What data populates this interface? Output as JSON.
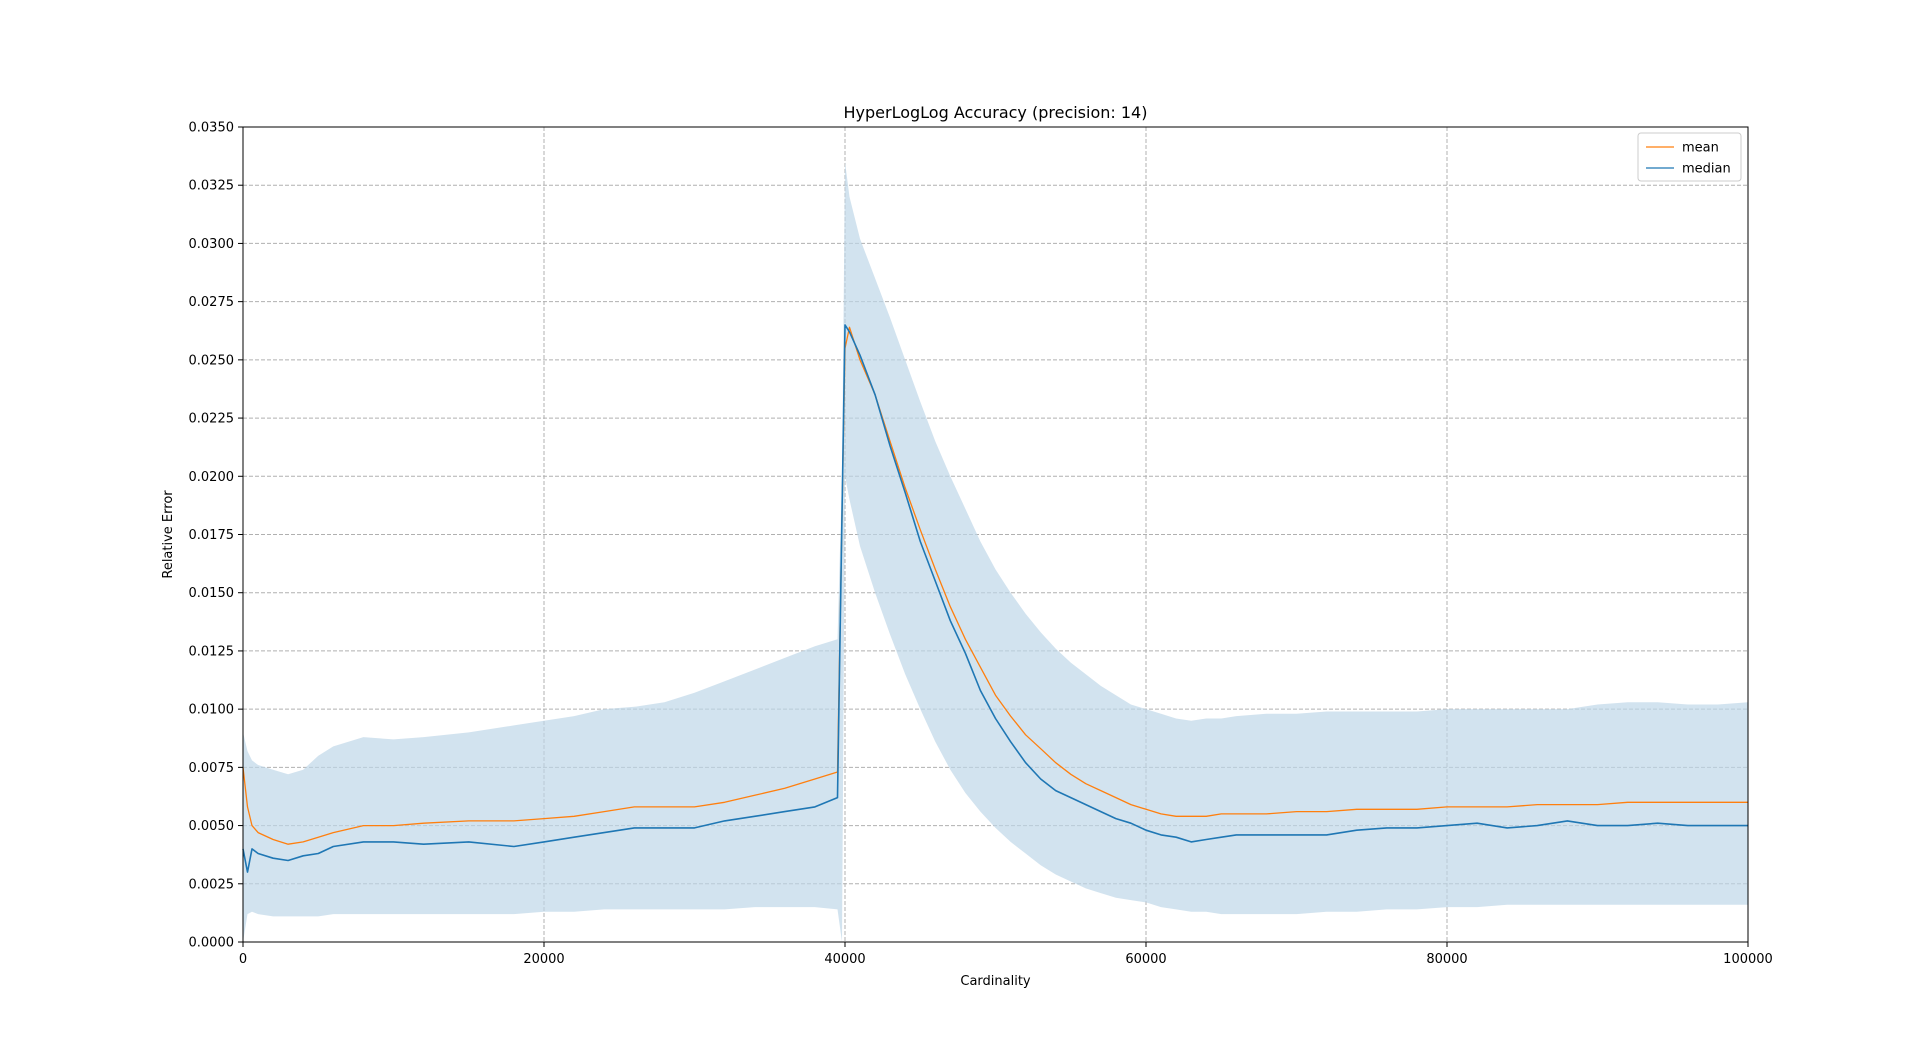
{
  "chart_data": {
    "type": "line",
    "title": "HyperLogLog Accuracy (precision: 14)",
    "xlabel": "Cardinality",
    "ylabel": "Relative Error",
    "xlim": [
      0,
      100000
    ],
    "ylim": [
      0,
      0.035
    ],
    "x_ticks": [
      "0",
      "20000",
      "40000",
      "60000",
      "80000",
      "100000"
    ],
    "y_ticks": [
      "0.0000",
      "0.0025",
      "0.0050",
      "0.0075",
      "0.0100",
      "0.0125",
      "0.0150",
      "0.0175",
      "0.0200",
      "0.0225",
      "0.0250",
      "0.0275",
      "0.0300",
      "0.0325",
      "0.0350"
    ],
    "grid": true,
    "legend_position": "top-right",
    "colors": {
      "mean": "#ff7f0e",
      "median": "#1f77b4",
      "band": "#bcd5e8"
    },
    "series": [
      {
        "name": "mean",
        "x": [
          0,
          300,
          600,
          1000,
          2000,
          3000,
          4000,
          5000,
          6000,
          8000,
          10000,
          12000,
          15000,
          18000,
          20000,
          22000,
          24000,
          26000,
          28000,
          30000,
          32000,
          34000,
          36000,
          38000,
          39500,
          40000,
          40300,
          41000,
          42000,
          43000,
          44000,
          45000,
          46000,
          47000,
          48000,
          49000,
          50000,
          51000,
          52000,
          53000,
          54000,
          55000,
          56000,
          57000,
          58000,
          59000,
          60000,
          61000,
          62000,
          63000,
          64000,
          65000,
          66000,
          68000,
          70000,
          72000,
          74000,
          76000,
          78000,
          80000,
          82000,
          84000,
          86000,
          88000,
          90000,
          92000,
          94000,
          96000,
          98000,
          100000
        ],
        "y": [
          0.0075,
          0.0058,
          0.005,
          0.0047,
          0.0044,
          0.0042,
          0.0043,
          0.0045,
          0.0047,
          0.005,
          0.005,
          0.0051,
          0.0052,
          0.0052,
          0.0053,
          0.0054,
          0.0056,
          0.0058,
          0.0058,
          0.0058,
          0.006,
          0.0063,
          0.0066,
          0.007,
          0.0073,
          0.0255,
          0.0264,
          0.025,
          0.0235,
          0.0215,
          0.0195,
          0.0177,
          0.016,
          0.0144,
          0.013,
          0.0118,
          0.0106,
          0.0097,
          0.0089,
          0.0083,
          0.0077,
          0.0072,
          0.0068,
          0.0065,
          0.0062,
          0.0059,
          0.0057,
          0.0055,
          0.0054,
          0.0054,
          0.0054,
          0.0055,
          0.0055,
          0.0055,
          0.0056,
          0.0056,
          0.0057,
          0.0057,
          0.0057,
          0.0058,
          0.0058,
          0.0058,
          0.0059,
          0.0059,
          0.0059,
          0.006,
          0.006,
          0.006,
          0.006,
          0.006
        ]
      },
      {
        "name": "median",
        "x": [
          0,
          300,
          600,
          1000,
          2000,
          3000,
          4000,
          5000,
          6000,
          8000,
          10000,
          12000,
          15000,
          18000,
          20000,
          22000,
          24000,
          26000,
          28000,
          30000,
          32000,
          34000,
          36000,
          38000,
          39500,
          40000,
          40300,
          41000,
          42000,
          43000,
          44000,
          45000,
          46000,
          47000,
          48000,
          49000,
          50000,
          51000,
          52000,
          53000,
          54000,
          55000,
          56000,
          57000,
          58000,
          59000,
          60000,
          61000,
          62000,
          63000,
          64000,
          65000,
          66000,
          68000,
          70000,
          72000,
          74000,
          76000,
          78000,
          80000,
          82000,
          84000,
          86000,
          88000,
          90000,
          92000,
          94000,
          96000,
          98000,
          100000
        ],
        "y": [
          0.004,
          0.003,
          0.004,
          0.0038,
          0.0036,
          0.0035,
          0.0037,
          0.0038,
          0.0041,
          0.0043,
          0.0043,
          0.0042,
          0.0043,
          0.0041,
          0.0043,
          0.0045,
          0.0047,
          0.0049,
          0.0049,
          0.0049,
          0.0052,
          0.0054,
          0.0056,
          0.0058,
          0.0062,
          0.0265,
          0.0262,
          0.0252,
          0.0235,
          0.0213,
          0.0193,
          0.0172,
          0.0155,
          0.0138,
          0.0124,
          0.0108,
          0.0096,
          0.0086,
          0.0077,
          0.007,
          0.0065,
          0.0062,
          0.0059,
          0.0056,
          0.0053,
          0.0051,
          0.0048,
          0.0046,
          0.0045,
          0.0043,
          0.0044,
          0.0045,
          0.0046,
          0.0046,
          0.0046,
          0.0046,
          0.0048,
          0.0049,
          0.0049,
          0.005,
          0.0051,
          0.0049,
          0.005,
          0.0052,
          0.005,
          0.005,
          0.0051,
          0.005,
          0.005,
          0.005
        ]
      }
    ],
    "band": {
      "x": [
        0,
        300,
        600,
        1000,
        2000,
        3000,
        4000,
        5000,
        6000,
        8000,
        10000,
        12000,
        15000,
        18000,
        20000,
        22000,
        24000,
        26000,
        28000,
        30000,
        32000,
        34000,
        36000,
        38000,
        39500,
        39800,
        40000,
        40300,
        41000,
        42000,
        43000,
        44000,
        45000,
        46000,
        47000,
        48000,
        49000,
        50000,
        51000,
        52000,
        53000,
        54000,
        55000,
        56000,
        57000,
        58000,
        59000,
        60000,
        61000,
        62000,
        63000,
        64000,
        65000,
        66000,
        68000,
        70000,
        72000,
        74000,
        76000,
        78000,
        80000,
        82000,
        84000,
        86000,
        88000,
        90000,
        92000,
        94000,
        96000,
        98000,
        100000
      ],
      "upper": [
        0.009,
        0.0082,
        0.0078,
        0.0076,
        0.0074,
        0.0072,
        0.0074,
        0.008,
        0.0084,
        0.0088,
        0.0087,
        0.0088,
        0.009,
        0.0093,
        0.0095,
        0.0097,
        0.01,
        0.0101,
        0.0103,
        0.0107,
        0.0112,
        0.0117,
        0.0122,
        0.0127,
        0.013,
        0.02,
        0.0335,
        0.032,
        0.0302,
        0.0285,
        0.0268,
        0.025,
        0.0232,
        0.0215,
        0.02,
        0.0186,
        0.0172,
        0.016,
        0.015,
        0.0141,
        0.0133,
        0.0126,
        0.012,
        0.0115,
        0.011,
        0.0106,
        0.0102,
        0.01,
        0.0098,
        0.0096,
        0.0095,
        0.0096,
        0.0096,
        0.0097,
        0.0098,
        0.0098,
        0.0099,
        0.0099,
        0.0099,
        0.0099,
        0.01,
        0.01,
        0.01,
        0.01,
        0.01,
        0.0102,
        0.0103,
        0.0103,
        0.0102,
        0.0102,
        0.0103
      ],
      "lower": [
        0.0,
        0.0012,
        0.0013,
        0.0012,
        0.0011,
        0.0011,
        0.0011,
        0.0011,
        0.0012,
        0.0012,
        0.0012,
        0.0012,
        0.0012,
        0.0012,
        0.0013,
        0.0013,
        0.0014,
        0.0014,
        0.0014,
        0.0014,
        0.0014,
        0.0015,
        0.0015,
        0.0015,
        0.0014,
        0.0,
        0.02,
        0.019,
        0.017,
        0.015,
        0.0132,
        0.0115,
        0.01,
        0.0086,
        0.0074,
        0.0064,
        0.0056,
        0.0049,
        0.0043,
        0.0038,
        0.0033,
        0.0029,
        0.0026,
        0.0023,
        0.0021,
        0.0019,
        0.0018,
        0.0017,
        0.0015,
        0.0014,
        0.0013,
        0.0013,
        0.0012,
        0.0012,
        0.0012,
        0.0012,
        0.0013,
        0.0013,
        0.0014,
        0.0014,
        0.0015,
        0.0015,
        0.0016,
        0.0016,
        0.0016,
        0.0016,
        0.0016,
        0.0016,
        0.0016,
        0.0016,
        0.0016
      ]
    }
  }
}
